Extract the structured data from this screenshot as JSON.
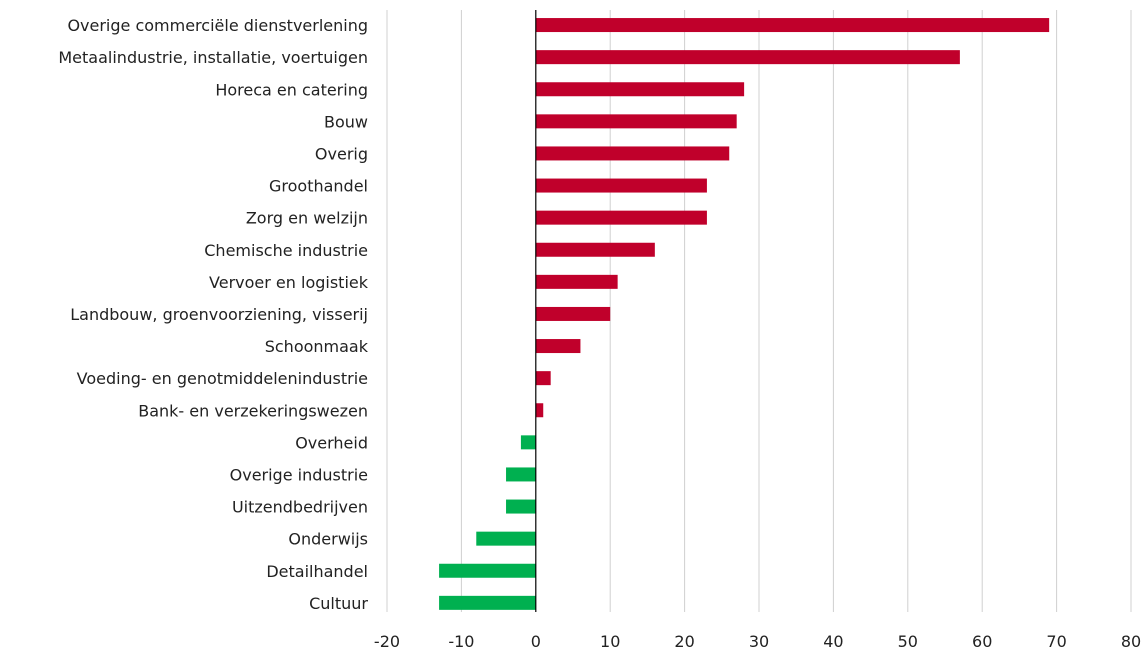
{
  "chart_data": {
    "type": "bar",
    "orientation": "horizontal",
    "categories": [
      "Overige commerciële dienstverlening",
      "Metaalindustrie, installatie, voertuigen",
      "Horeca en catering",
      "Bouw",
      "Overig",
      "Groothandel",
      "Zorg en welzijn",
      "Chemische industrie",
      "Vervoer en logistiek",
      "Landbouw, groenvoorziening, visserij",
      "Schoonmaak",
      "Voeding- en genotmiddelenindustrie",
      "Bank- en verzekeringswezen",
      "Overheid",
      "Overige industrie",
      "Uitzendbedrijven",
      "Onderwijs",
      "Detailhandel",
      "Cultuur"
    ],
    "values": [
      69,
      57,
      28,
      27,
      26,
      23,
      23,
      16,
      11,
      10,
      6,
      2,
      1,
      -2,
      -4,
      -4,
      -8,
      -13,
      -13
    ],
    "x_ticks": [
      "-20",
      "-10",
      "0",
      "10",
      "20",
      "30",
      "40",
      "50",
      "60",
      "70",
      "80"
    ],
    "xlim": [
      -20,
      80
    ],
    "grid": "vertical",
    "legend": "none",
    "title": "",
    "xlabel": "",
    "ylabel": "",
    "colors": {
      "positive": "#c0002b",
      "negative": "#00b050",
      "grid": "#d0d0d0",
      "axis": "#000000"
    }
  }
}
